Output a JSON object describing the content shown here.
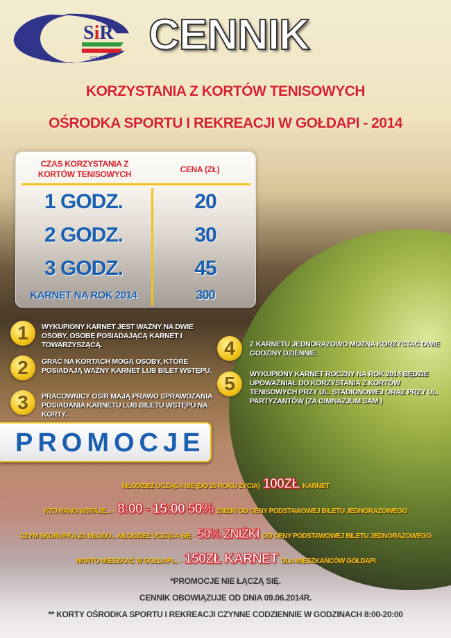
{
  "logo": {
    "text": "SiR",
    "sub": "GOŁDAP",
    "colors": {
      "navy": "#30338a",
      "red": "#d7222c",
      "green": "#2e9a3a"
    }
  },
  "header": {
    "title": "CENNIK",
    "subtitle_1": "KORZYSTANIA Z KORTÓW TENISOWYCH",
    "subtitle_2": "OŚRODKA SPORTU I REKREACJI W GOŁDAPI - 2014"
  },
  "price_table": {
    "headers": [
      "CZAS KORZYSTANIA Z KORTÓW TENISOWYCH",
      "CENA (ZŁ)"
    ],
    "rows": [
      {
        "time": "1 GODZ.",
        "price": "20"
      },
      {
        "time": "2 GODZ.",
        "price": "30"
      },
      {
        "time": "3 GODZ.",
        "price": "45"
      },
      {
        "time": "KARNET NA ROK 2014",
        "price": "300"
      }
    ]
  },
  "notes": [
    {
      "num": "1",
      "text": "WYKUPIONY KARNET JEST WAŻNY NA DWIE OSOBY, OSOBĘ POSIADAJĄCĄ KARNET I TOWARZYSZĄCĄ."
    },
    {
      "num": "2",
      "text": "GRAĆ NA KORTACH MOGĄ OSOBY, KTÓRE POSIADAJĄ WAŻNY KARNET LUB BILET WSTĘPU."
    },
    {
      "num": "3",
      "text": "PRACOWNICY OSIR MAJĄ PRAWO SPRAWDZANIA POSIADANIA KARNETU LUB BILETU WSTĘPU NA KORTY."
    },
    {
      "num": "4",
      "text": "Z KARNETU JEDNORAZOWO MOŻNA KORZYSTAĆ DWIE GODZINY DZIENNIE."
    },
    {
      "num": "5",
      "text": "WYKUPIONY KARNET ROCZNY NA ROK 2014 BĘDZIE UPOWAŻNIAŁ DO KORZYSTANIA Z KORTÓW TENISOWYCH PRZY UL. STADIONOWEJ ORAZ PRZY UL. PARTYZANTÓW (ZA GIMNAZJUM SAM.)"
    }
  ],
  "promo": {
    "heading": "PROMOCJE",
    "lines": [
      {
        "a": "MŁODZIEŻ UCZĄCA SIĘ (DO 25 ROKU ŻYCIA)",
        "b": "100ZŁ",
        "c": "KARNET"
      },
      {
        "a": "KTO RANO WSTAJE... -",
        "b": "8:00 - 15:00 50%",
        "c": "ZNIŻKI OD CENY PODSTAWOWEJ BILETU JEDNORAZOWEGO"
      },
      {
        "a": "CZYM SKORUPKA ZA MŁODU... MŁODZIEŻ UCZĄCA SIĘ -",
        "b": "50% ZNIŻKI",
        "c": "OD CENY PODSTAWOWEJ BILETU JEDNORAZOWEGO"
      },
      {
        "a": "WARTO MIESZKAĆ W GOŁDAPI... -",
        "b": "150ZŁ KARNET",
        "c": "DLA MIESZKAŃCÓW GOŁDAPI"
      }
    ]
  },
  "footer": [
    "*PROMOCJE NIE ŁĄCZĄ SIĘ.",
    "CENNIK OBOWIĄZUJE OD DNIA 09.06.2014R.",
    "** KORTY OŚRODKA SPORTU I REKREACJI CZYNNE CODZIENNIE W GODZINACH 8:00-20:00"
  ]
}
